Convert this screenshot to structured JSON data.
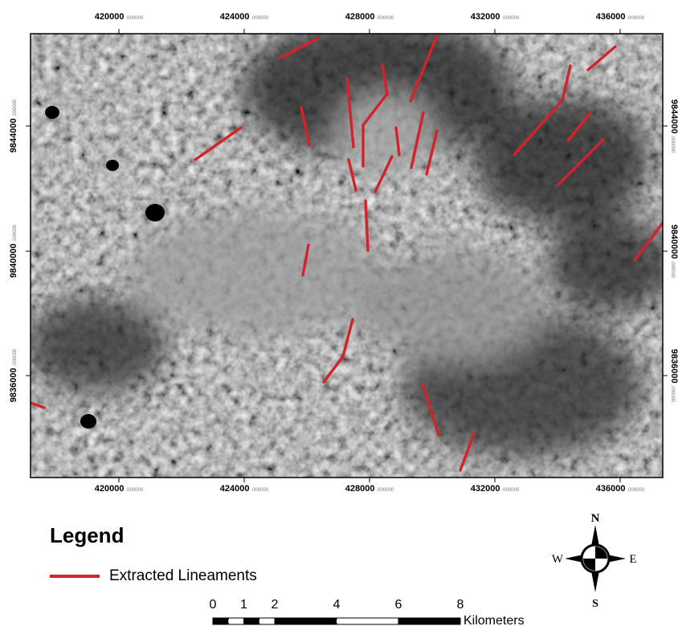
{
  "map": {
    "x_ticks": [
      "420000",
      "424000",
      "428000",
      "432000",
      "436000"
    ],
    "x_tick_decimals": ".000000",
    "y_ticks": [
      "9844000",
      "9840000",
      "9836000"
    ],
    "y_tick_decimals": ".000000"
  },
  "legend": {
    "title": "Legend",
    "items": [
      {
        "label": "Extracted Lineaments",
        "color": "#d2232a"
      }
    ]
  },
  "north_arrow": {
    "n": "N",
    "s": "S",
    "e": "E",
    "w": "W"
  },
  "scale_bar": {
    "labels": [
      "0",
      "1",
      "2",
      "4",
      "6",
      "8"
    ],
    "unit": "Kilometers"
  },
  "colors": {
    "lineament": "#d2232a",
    "frame": "#000000",
    "tick_text": "#000000"
  }
}
